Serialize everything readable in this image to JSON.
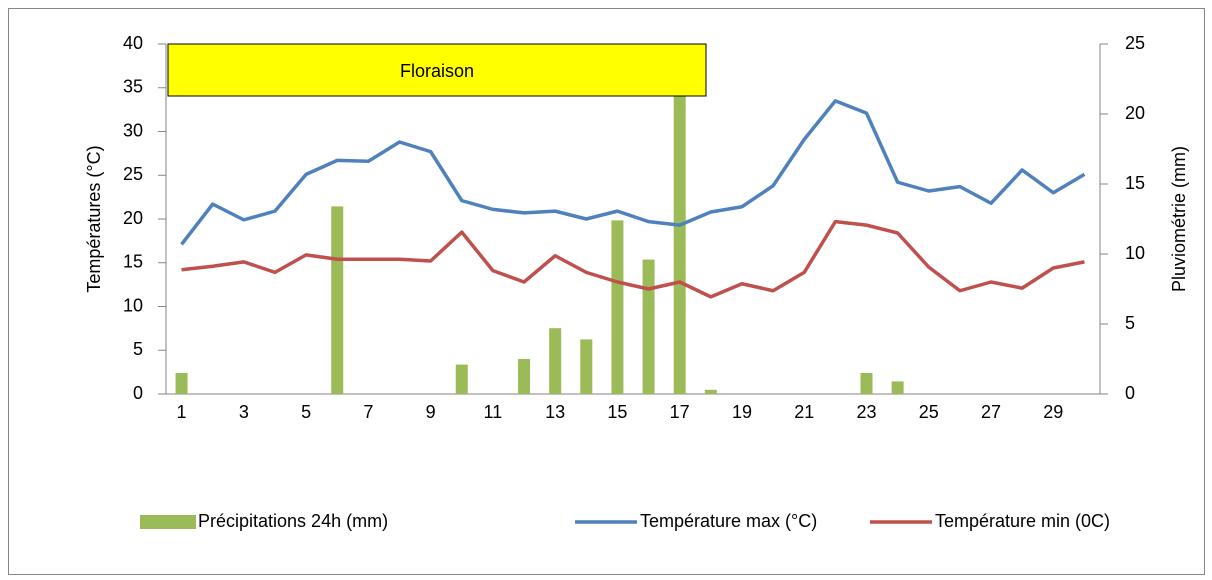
{
  "chart_data": {
    "type": "bar-line",
    "annotation": "Floraison",
    "y_label": "Températures (°C)",
    "y2_label": "Pluviométrie (mm)",
    "categories": [
      "1",
      null,
      "3",
      null,
      "5",
      null,
      "7",
      null,
      "9",
      null,
      "11",
      null,
      "13",
      null,
      "15",
      null,
      "17",
      null,
      "19",
      null,
      "21",
      null,
      "23",
      null,
      "25",
      null,
      "27",
      null,
      "29",
      null
    ],
    "ylim": [
      0,
      40
    ],
    "yticks": [
      0,
      5,
      10,
      15,
      20,
      25,
      30,
      35,
      40
    ],
    "y2lim": [
      0,
      25
    ],
    "y2ticks": [
      0,
      5,
      10,
      15,
      20,
      25
    ],
    "legend": "bottom",
    "series": [
      {
        "name": "Précipitations 24h (mm)",
        "type": "bar",
        "axis": "y2",
        "color": "#9bbb59",
        "values": [
          1.5,
          0,
          0,
          0,
          0,
          13.4,
          0,
          0,
          0,
          2.1,
          0,
          2.5,
          4.7,
          3.9,
          12.4,
          9.6,
          22,
          0.3,
          0,
          0,
          0,
          0,
          1.5,
          0.9,
          0,
          0,
          0,
          0,
          0,
          0
        ]
      },
      {
        "name": "Température max (°C)",
        "type": "line",
        "color": "#4f81bd",
        "values": [
          17.1,
          21.7,
          19.9,
          20.9,
          25.1,
          26.7,
          26.6,
          28.8,
          27.7,
          22.1,
          21.1,
          20.7,
          20.9,
          20,
          20.9,
          19.7,
          19.3,
          20.8,
          21.4,
          23.8,
          29.1,
          33.5,
          32.1,
          24.2,
          23.2,
          23.7,
          21.8,
          25.6,
          23,
          25.1
        ]
      },
      {
        "name": "Température min (0C)",
        "type": "line",
        "color": "#c0504d",
        "values": [
          14.2,
          14.6,
          15.1,
          13.9,
          15.9,
          15.4,
          15.4,
          15.4,
          15.2,
          18.5,
          14.1,
          12.8,
          15.8,
          13.9,
          12.8,
          12,
          12.8,
          11.1,
          12.6,
          11.8,
          13.9,
          19.7,
          19.3,
          18.4,
          14.5,
          11.8,
          12.8,
          12.1,
          14.4,
          15.1
        ]
      }
    ]
  }
}
